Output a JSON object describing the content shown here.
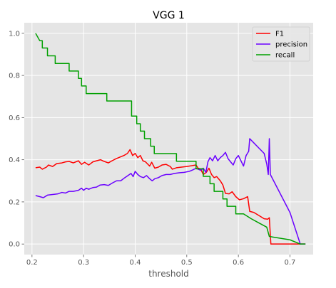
{
  "chart_data": {
    "type": "line",
    "title": "VGG 1",
    "xlabel": "threshold",
    "ylabel": "",
    "xlim": [
      0.185,
      0.745
    ],
    "ylim": [
      -0.05,
      1.05
    ],
    "xticks": [
      "0.2",
      "0.3",
      "0.4",
      "0.5",
      "0.6",
      "0.7"
    ],
    "yticks": [
      "0.0",
      "0.2",
      "0.4",
      "0.6",
      "0.8",
      "1.0"
    ],
    "grid": true,
    "legend_position": "top-right",
    "background": "#e5e5e5",
    "series": [
      {
        "name": "F1",
        "color": "#ff0000",
        "points": [
          [
            0.207,
            0.362
          ],
          [
            0.215,
            0.365
          ],
          [
            0.22,
            0.355
          ],
          [
            0.228,
            0.365
          ],
          [
            0.232,
            0.375
          ],
          [
            0.24,
            0.368
          ],
          [
            0.248,
            0.382
          ],
          [
            0.258,
            0.385
          ],
          [
            0.265,
            0.39
          ],
          [
            0.272,
            0.392
          ],
          [
            0.28,
            0.385
          ],
          [
            0.29,
            0.395
          ],
          [
            0.296,
            0.378
          ],
          [
            0.302,
            0.388
          ],
          [
            0.31,
            0.375
          ],
          [
            0.318,
            0.39
          ],
          [
            0.325,
            0.395
          ],
          [
            0.333,
            0.4
          ],
          [
            0.34,
            0.392
          ],
          [
            0.348,
            0.385
          ],
          [
            0.355,
            0.395
          ],
          [
            0.363,
            0.405
          ],
          [
            0.37,
            0.412
          ],
          [
            0.378,
            0.42
          ],
          [
            0.385,
            0.43
          ],
          [
            0.39,
            0.448
          ],
          [
            0.395,
            0.42
          ],
          [
            0.4,
            0.43
          ],
          [
            0.405,
            0.41
          ],
          [
            0.41,
            0.42
          ],
          [
            0.415,
            0.395
          ],
          [
            0.42,
            0.39
          ],
          [
            0.428,
            0.37
          ],
          [
            0.432,
            0.388
          ],
          [
            0.438,
            0.36
          ],
          [
            0.445,
            0.365
          ],
          [
            0.452,
            0.375
          ],
          [
            0.46,
            0.378
          ],
          [
            0.468,
            0.368
          ],
          [
            0.472,
            0.355
          ],
          [
            0.48,
            0.362
          ],
          [
            0.49,
            0.365
          ],
          [
            0.5,
            0.368
          ],
          [
            0.51,
            0.372
          ],
          [
            0.518,
            0.375
          ],
          [
            0.522,
            0.36
          ],
          [
            0.527,
            0.355
          ],
          [
            0.532,
            0.33
          ],
          [
            0.538,
            0.34
          ],
          [
            0.543,
            0.36
          ],
          [
            0.548,
            0.33
          ],
          [
            0.553,
            0.315
          ],
          [
            0.558,
            0.32
          ],
          [
            0.565,
            0.3
          ],
          [
            0.57,
            0.28
          ],
          [
            0.575,
            0.24
          ],
          [
            0.582,
            0.238
          ],
          [
            0.588,
            0.248
          ],
          [
            0.595,
            0.225
          ],
          [
            0.602,
            0.21
          ],
          [
            0.61,
            0.215
          ],
          [
            0.618,
            0.225
          ],
          [
            0.622,
            0.155
          ],
          [
            0.63,
            0.15
          ],
          [
            0.64,
            0.135
          ],
          [
            0.65,
            0.12
          ],
          [
            0.657,
            0.118
          ],
          [
            0.66,
            0.125
          ],
          [
            0.663,
            0.0
          ],
          [
            0.7,
            0.0
          ],
          [
            0.73,
            0.0
          ]
        ]
      },
      {
        "name": "precision",
        "color": "#6a00ff",
        "points": [
          [
            0.207,
            0.23
          ],
          [
            0.215,
            0.225
          ],
          [
            0.222,
            0.22
          ],
          [
            0.23,
            0.232
          ],
          [
            0.24,
            0.235
          ],
          [
            0.25,
            0.238
          ],
          [
            0.258,
            0.245
          ],
          [
            0.265,
            0.242
          ],
          [
            0.272,
            0.25
          ],
          [
            0.28,
            0.25
          ],
          [
            0.29,
            0.255
          ],
          [
            0.296,
            0.265
          ],
          [
            0.3,
            0.255
          ],
          [
            0.305,
            0.265
          ],
          [
            0.31,
            0.26
          ],
          [
            0.318,
            0.268
          ],
          [
            0.325,
            0.27
          ],
          [
            0.332,
            0.28
          ],
          [
            0.34,
            0.282
          ],
          [
            0.348,
            0.278
          ],
          [
            0.356,
            0.29
          ],
          [
            0.364,
            0.3
          ],
          [
            0.372,
            0.3
          ],
          [
            0.38,
            0.315
          ],
          [
            0.386,
            0.325
          ],
          [
            0.392,
            0.335
          ],
          [
            0.396,
            0.32
          ],
          [
            0.4,
            0.345
          ],
          [
            0.405,
            0.33
          ],
          [
            0.41,
            0.32
          ],
          [
            0.416,
            0.315
          ],
          [
            0.422,
            0.325
          ],
          [
            0.428,
            0.31
          ],
          [
            0.433,
            0.3
          ],
          [
            0.438,
            0.31
          ],
          [
            0.445,
            0.315
          ],
          [
            0.452,
            0.325
          ],
          [
            0.46,
            0.33
          ],
          [
            0.468,
            0.33
          ],
          [
            0.476,
            0.335
          ],
          [
            0.485,
            0.338
          ],
          [
            0.495,
            0.34
          ],
          [
            0.505,
            0.345
          ],
          [
            0.512,
            0.352
          ],
          [
            0.518,
            0.36
          ],
          [
            0.522,
            0.355
          ],
          [
            0.527,
            0.35
          ],
          [
            0.532,
            0.36
          ],
          [
            0.537,
            0.34
          ],
          [
            0.541,
            0.39
          ],
          [
            0.545,
            0.41
          ],
          [
            0.55,
            0.395
          ],
          [
            0.555,
            0.42
          ],
          [
            0.56,
            0.395
          ],
          [
            0.565,
            0.41
          ],
          [
            0.57,
            0.42
          ],
          [
            0.575,
            0.435
          ],
          [
            0.58,
            0.405
          ],
          [
            0.585,
            0.39
          ],
          [
            0.59,
            0.375
          ],
          [
            0.595,
            0.405
          ],
          [
            0.6,
            0.42
          ],
          [
            0.605,
            0.395
          ],
          [
            0.61,
            0.37
          ],
          [
            0.615,
            0.42
          ],
          [
            0.62,
            0.44
          ],
          [
            0.622,
            0.5
          ],
          [
            0.63,
            0.48
          ],
          [
            0.64,
            0.455
          ],
          [
            0.65,
            0.43
          ],
          [
            0.655,
            0.38
          ],
          [
            0.658,
            0.33
          ],
          [
            0.66,
            0.5
          ],
          [
            0.662,
            0.33
          ],
          [
            0.7,
            0.15
          ],
          [
            0.72,
            0.0
          ],
          [
            0.73,
            0.0
          ]
        ]
      },
      {
        "name": "recall",
        "color": "#00a000",
        "points": [
          [
            0.207,
            1.0
          ],
          [
            0.215,
            0.965
          ],
          [
            0.22,
            0.965
          ],
          [
            0.22,
            0.93
          ],
          [
            0.23,
            0.93
          ],
          [
            0.23,
            0.893
          ],
          [
            0.245,
            0.893
          ],
          [
            0.245,
            0.857
          ],
          [
            0.272,
            0.857
          ],
          [
            0.272,
            0.821
          ],
          [
            0.29,
            0.821
          ],
          [
            0.29,
            0.786
          ],
          [
            0.296,
            0.786
          ],
          [
            0.296,
            0.75
          ],
          [
            0.305,
            0.75
          ],
          [
            0.305,
            0.714
          ],
          [
            0.345,
            0.714
          ],
          [
            0.345,
            0.679
          ],
          [
            0.393,
            0.679
          ],
          [
            0.393,
            0.607
          ],
          [
            0.403,
            0.607
          ],
          [
            0.403,
            0.571
          ],
          [
            0.41,
            0.571
          ],
          [
            0.41,
            0.536
          ],
          [
            0.418,
            0.536
          ],
          [
            0.418,
            0.5
          ],
          [
            0.43,
            0.5
          ],
          [
            0.43,
            0.464
          ],
          [
            0.437,
            0.464
          ],
          [
            0.437,
            0.429
          ],
          [
            0.48,
            0.429
          ],
          [
            0.48,
            0.393
          ],
          [
            0.518,
            0.393
          ],
          [
            0.518,
            0.357
          ],
          [
            0.532,
            0.357
          ],
          [
            0.532,
            0.321
          ],
          [
            0.545,
            0.321
          ],
          [
            0.545,
            0.286
          ],
          [
            0.553,
            0.286
          ],
          [
            0.553,
            0.25
          ],
          [
            0.57,
            0.25
          ],
          [
            0.57,
            0.214
          ],
          [
            0.578,
            0.214
          ],
          [
            0.578,
            0.179
          ],
          [
            0.595,
            0.179
          ],
          [
            0.595,
            0.143
          ],
          [
            0.61,
            0.143
          ],
          [
            0.625,
            0.12
          ],
          [
            0.64,
            0.1
          ],
          [
            0.655,
            0.08
          ],
          [
            0.66,
            0.036
          ],
          [
            0.7,
            0.02
          ],
          [
            0.72,
            0.0
          ],
          [
            0.73,
            0.0
          ]
        ]
      }
    ]
  }
}
